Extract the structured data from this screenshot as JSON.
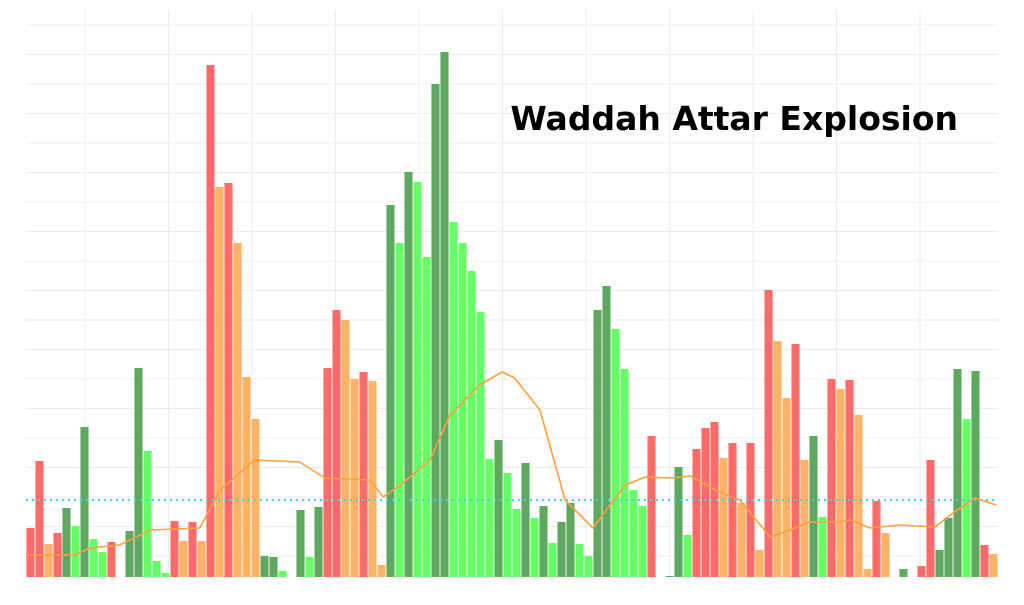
{
  "chart_data": {
    "type": "bar",
    "title": "Waddah Attar Explosion",
    "values": [
      49,
      116,
      33,
      44,
      69,
      51,
      150,
      38,
      25,
      35,
      0,
      46,
      209,
      126,
      16,
      4,
      56,
      36,
      55,
      36,
      512,
      390,
      394,
      334,
      200,
      158,
      21,
      20,
      6,
      0,
      67,
      20,
      70,
      209,
      267,
      257,
      198,
      205,
      196,
      12,
      372,
      334,
      405,
      395,
      320,
      493,
      525,
      355,
      334,
      306,
      265,
      118,
      137,
      104,
      68,
      114,
      59,
      71,
      34,
      55,
      74,
      33,
      21,
      267,
      291,
      248,
      208,
      87,
      71,
      141,
      0,
      1,
      110,
      42,
      128,
      149,
      155,
      119,
      134,
      74,
      134,
      27,
      287,
      236,
      179,
      233,
      117,
      141,
      60,
      198,
      188,
      197,
      162,
      8,
      76,
      44,
      0,
      8,
      0,
      11,
      117,
      27,
      59,
      208,
      158,
      206,
      32,
      23
    ],
    "colors": [
      "#ff6b6b",
      "#ff6b6b",
      "#ffb366",
      "#ff6b6b",
      "#5fa85f",
      "#66ff66",
      "#5fa85f",
      "#66ff66",
      "#66ff66",
      "#ff6b6b",
      "#ff6b6b",
      "#5fa85f",
      "#5fa85f",
      "#66ff66",
      "#66ff66",
      "#66ff66",
      "#ff6b6b",
      "#ffb366",
      "#ff6b6b",
      "#ffb366",
      "#ff6b6b",
      "#ffb366",
      "#ff6b6b",
      "#ffb366",
      "#ffb366",
      "#ffb366",
      "#5fa85f",
      "#5fa85f",
      "#66ff66",
      "#66ff66",
      "#5fa85f",
      "#66ff66",
      "#5fa85f",
      "#ff6b6b",
      "#ff6b6b",
      "#ffb366",
      "#ffb366",
      "#ff6b6b",
      "#ffb366",
      "#ffb366",
      "#5fa85f",
      "#66ff66",
      "#5fa85f",
      "#66ff66",
      "#66ff66",
      "#5fa85f",
      "#5fa85f",
      "#66ff66",
      "#66ff66",
      "#66ff66",
      "#66ff66",
      "#66ff66",
      "#5fa85f",
      "#66ff66",
      "#66ff66",
      "#5fa85f",
      "#66ff66",
      "#5fa85f",
      "#66ff66",
      "#5fa85f",
      "#5fa85f",
      "#66ff66",
      "#66ff66",
      "#5fa85f",
      "#5fa85f",
      "#66ff66",
      "#66ff66",
      "#66ff66",
      "#66ff66",
      "#ff6b6b",
      "#ff6b6b",
      "#5fa85f",
      "#5fa85f",
      "#66ff66",
      "#ff6b6b",
      "#ff6b6b",
      "#ff6b6b",
      "#ffb366",
      "#ff6b6b",
      "#ffb366",
      "#ff6b6b",
      "#ffb366",
      "#ff6b6b",
      "#ffb366",
      "#ffb366",
      "#ff6b6b",
      "#ffb366",
      "#5fa85f",
      "#66ff66",
      "#ff6b6b",
      "#ffb366",
      "#ff6b6b",
      "#ffb366",
      "#ffb366",
      "#ff6b6b",
      "#ffb366",
      "#ffb366",
      "#5fa85f",
      "#5fa85f",
      "#ff6b6b",
      "#ff6b6b",
      "#5fa85f",
      "#5fa85f",
      "#5fa85f",
      "#66ff66",
      "#5fa85f",
      "#ff6b6b",
      "#ffb366"
    ],
    "line": {
      "color": "#ffa040",
      "x": [
        0,
        5.4,
        7.1,
        10.4,
        13.8,
        19.3,
        21.6,
        25.4,
        30.4,
        33.2,
        38.2,
        39.7,
        41.6,
        44.9,
        47.1,
        50.4,
        52.9,
        54.3,
        57.1,
        59.9,
        63,
        64.9,
        66.6,
        68.8,
        71.8,
        73.8,
        76.6,
        79.3,
        82.7,
        84.9,
        87.1,
        89.9,
        91.6,
        93.8,
        97.1,
        101,
        102.7,
        105.4,
        107.8
      ],
      "values": [
        22,
        22,
        29,
        32,
        47,
        49,
        87,
        117,
        115,
        99,
        97,
        80,
        92,
        117,
        162,
        192,
        205,
        199,
        167,
        77,
        49,
        72,
        92,
        100,
        99,
        101,
        87,
        77,
        40,
        47,
        55,
        55,
        57,
        49,
        52,
        50,
        62,
        79,
        72
      ]
    },
    "threshold": {
      "value": 77,
      "color": "#40d8e8"
    },
    "xlim": [
      0,
      108
    ],
    "ylim": [
      0,
      560
    ],
    "grid": true
  }
}
